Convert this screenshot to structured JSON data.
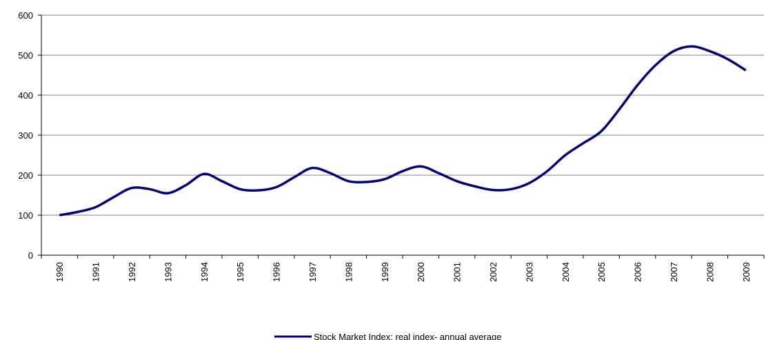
{
  "chart_data": {
    "type": "line",
    "x": [
      1990,
      1990.5,
      1991,
      1991.5,
      1992,
      1992.5,
      1993,
      1993.5,
      1994,
      1994.5,
      1995,
      1995.5,
      1996,
      1996.5,
      1997,
      1997.5,
      1998,
      1998.5,
      1999,
      1999.5,
      2000,
      2000.5,
      2001,
      2001.5,
      2002,
      2002.5,
      2003,
      2003.5,
      2004,
      2004.5,
      2005,
      2005.5,
      2006,
      2006.5,
      2007,
      2007.5,
      2008,
      2008.5,
      2009
    ],
    "series": [
      {
        "name": "Stock Market Index: real index- annual average",
        "color": "#000080",
        "values": [
          100,
          108,
          120,
          145,
          168,
          165,
          155,
          175,
          203,
          185,
          165,
          162,
          170,
          195,
          218,
          205,
          185,
          183,
          190,
          210,
          222,
          205,
          185,
          172,
          163,
          165,
          180,
          210,
          250,
          280,
          310,
          365,
          425,
          475,
          510,
          522,
          510,
          490,
          462
        ]
      }
    ],
    "xlim": [
      1989.5,
      2009.5
    ],
    "xticks": [
      1990,
      1991,
      1992,
      1993,
      1994,
      1995,
      1996,
      1997,
      1998,
      1999,
      2000,
      2001,
      2002,
      2003,
      2004,
      2005,
      2006,
      2007,
      2008,
      2009
    ],
    "ylim": [
      0,
      600
    ],
    "yticks": [
      0,
      100,
      200,
      300,
      400,
      500,
      600
    ],
    "grid": true,
    "legend": "bottom"
  }
}
